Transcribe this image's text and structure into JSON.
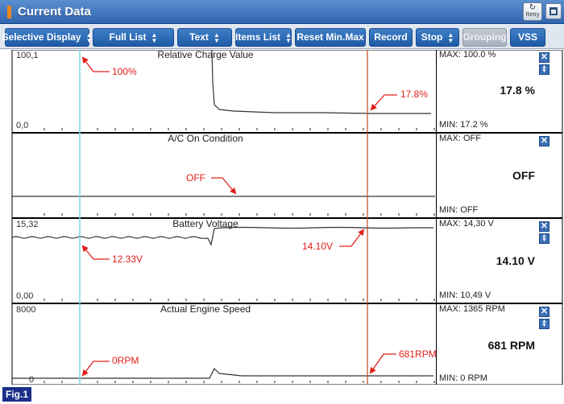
{
  "window": {
    "title": "Current Data",
    "retry_label": "Retry",
    "accent_color": "#f0861f",
    "title_bar_color": "#2f64ad"
  },
  "toolbar": {
    "buttons": [
      {
        "label": "Selective Display",
        "spinner": true,
        "enabled": true
      },
      {
        "label": "Full List",
        "spinner": true,
        "enabled": true
      },
      {
        "label": "Text",
        "spinner": true,
        "enabled": true
      },
      {
        "label": "Items List",
        "spinner": true,
        "enabled": true
      },
      {
        "label": "Reset Min.Max",
        "spinner": false,
        "enabled": true
      },
      {
        "label": "Record",
        "spinner": false,
        "enabled": true
      },
      {
        "label": "Stop",
        "spinner": true,
        "enabled": true
      },
      {
        "label": "Grouping",
        "spinner": false,
        "enabled": false
      },
      {
        "label": "VSS",
        "spinner": false,
        "enabled": true
      }
    ]
  },
  "panels": [
    {
      "title": "Relative Charge Value",
      "y_top_label": "100,1",
      "y_bottom_label": "0,0",
      "max_text": "MAX: 100.0 %",
      "min_text": "MIN:  17.2 %",
      "current_text": "17.8 %",
      "has_scroll_buttons": true,
      "annotations": [
        "100%",
        "17.8%"
      ]
    },
    {
      "title": "A/C On Condition",
      "y_top_label": "",
      "y_bottom_label": "",
      "max_text": "MAX: OFF",
      "min_text": "MIN: OFF",
      "current_text": "OFF",
      "has_scroll_buttons": false,
      "annotations": [
        "OFF"
      ]
    },
    {
      "title": "Battery Voltage",
      "y_top_label": "15,32",
      "y_bottom_label": "0,00",
      "max_text": "MAX: 14,30 V",
      "min_text": "MIN: 10,49 V",
      "current_text": "14.10 V",
      "has_scroll_buttons": true,
      "annotations": [
        "12.33V",
        "14.10V"
      ]
    },
    {
      "title": "Actual Engine Speed",
      "y_top_label": "8000",
      "y_bottom_label": "0",
      "max_text": "MAX:  1365 RPM",
      "min_text": "MIN:    0 RPM",
      "current_text": "681 RPM",
      "has_scroll_buttons": true,
      "annotations": [
        "0RPM",
        "681RPM"
      ]
    }
  ],
  "cursor_colors": {
    "left": "#7fd7e0",
    "right": "#c04a1c"
  },
  "annotation_color": "#e0201a",
  "figure_label": "Fig.1"
}
